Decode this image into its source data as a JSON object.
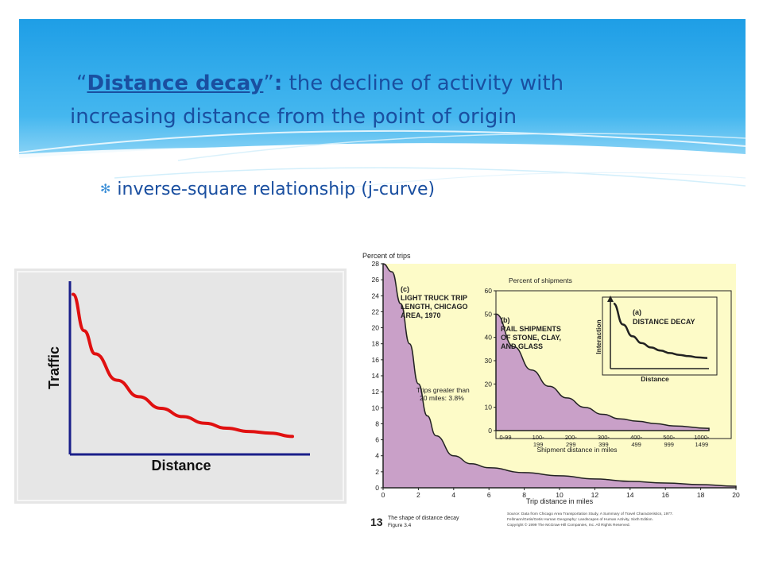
{
  "slide": {
    "title_lead": "“",
    "title_term": "Distance decay",
    "title_close": "”",
    "title_colon": ":",
    "title_rest": " the decline of activity with increasing distance from the point of origin",
    "bullet": "inverse-square relationship (j-curve)",
    "colors": {
      "banner": "#2aa6e6",
      "text": "#1a4fa0",
      "curve": "#e01010",
      "fill": "#c9a0c8",
      "panel": "#fdfbc8"
    }
  },
  "chart_data": [
    {
      "type": "line",
      "xlabel": "Distance",
      "ylabel": "Traffic",
      "x": [
        0.0,
        0.05,
        0.1,
        0.2,
        0.3,
        0.4,
        0.5,
        0.6,
        0.7,
        0.8,
        0.9,
        1.0
      ],
      "y": [
        0.94,
        0.72,
        0.58,
        0.42,
        0.32,
        0.25,
        0.2,
        0.16,
        0.13,
        0.11,
        0.1,
        0.08
      ],
      "grid": false
    },
    {
      "type": "area",
      "title": "(c) LIGHT TRUCK TRIP LENGTH, CHICAGO AREA, 1970",
      "ylabel": "Percent of trips",
      "xlabel": "Trip distance in miles",
      "xlim": [
        0,
        20
      ],
      "ylim": [
        0,
        28
      ],
      "x_ticks": [
        "0",
        "2",
        "4",
        "6",
        "8",
        "10",
        "12",
        "14",
        "16",
        "18",
        "20"
      ],
      "y_ticks": [
        "0",
        "2",
        "4",
        "6",
        "8",
        "10",
        "12",
        "14",
        "16",
        "18",
        "20",
        "22",
        "24",
        "26",
        "28"
      ],
      "annotation": "Trips greater than 20 miles: 3.8%",
      "x": [
        0,
        0.5,
        1,
        1.5,
        2,
        2.5,
        3,
        4,
        5,
        6,
        8,
        10,
        12,
        14,
        16,
        18,
        20
      ],
      "y": [
        28,
        27,
        23,
        18,
        13,
        9,
        6.5,
        4,
        3,
        2.5,
        1.9,
        1.5,
        1.1,
        0.8,
        0.6,
        0.4,
        0.2
      ]
    },
    {
      "type": "area",
      "title": "(b) RAIL SHIPMENTS OF STONE, CLAY, AND GLASS",
      "ylabel": "Percent of shipments",
      "xlabel": "Shipment distance in miles",
      "ylim": [
        0,
        60
      ],
      "y_ticks": [
        "0",
        "10",
        "20",
        "30",
        "40",
        "50",
        "60"
      ],
      "categories": [
        "0-99",
        "100-199",
        "200-299",
        "300-399",
        "400-499",
        "500-999",
        "1000-1499"
      ],
      "x": [
        0,
        0.5,
        1,
        1.5,
        2,
        2.5,
        3,
        3.5,
        4,
        4.5,
        5,
        6
      ],
      "y": [
        50,
        36,
        26,
        19,
        14,
        10,
        7,
        5,
        4,
        3,
        2,
        1
      ]
    },
    {
      "type": "line",
      "title": "(a) DISTANCE DECAY",
      "ylabel": "Interaction",
      "xlabel": "Distance",
      "x": [
        0,
        0.1,
        0.2,
        0.3,
        0.4,
        0.5,
        0.6,
        0.7,
        0.8,
        0.9,
        1.0
      ],
      "y": [
        1.0,
        0.66,
        0.47,
        0.36,
        0.29,
        0.24,
        0.2,
        0.17,
        0.15,
        0.13,
        0.12
      ]
    }
  ],
  "figure": {
    "number": "13",
    "caption_title": "The shape of distance decay",
    "caption_sub": "Figure 3.4",
    "source_1": "Source: Data from Chicago Area Transportation Study, A Summary of Travel Characteristics, 1977.",
    "source_2": "Fellmann/Getis/Getis Human Geography: Landscapes of Human Activity, Sixth Edition.",
    "source_3": "Copyright © 1999 The McGraw-Hill Companies, Inc. All Rights Reserved."
  }
}
